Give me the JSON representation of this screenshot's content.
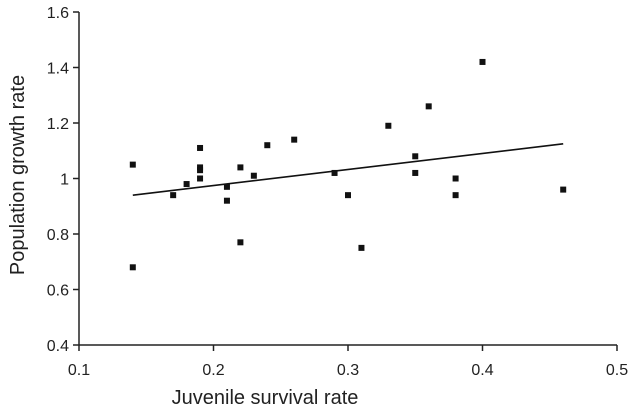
{
  "chart_data": {
    "type": "scatter",
    "title": "",
    "xlabel": "Juvenile survival rate",
    "ylabel": "Population growth rate",
    "xlim": [
      0.1,
      0.5
    ],
    "ylim": [
      0.4,
      1.6
    ],
    "x_ticks": [
      0.1,
      0.2,
      0.3,
      0.4,
      0.5
    ],
    "x_tick_labels": [
      "0.1",
      "0.2",
      "0.3",
      "0.4",
      "0.5"
    ],
    "y_ticks": [
      0.4,
      0.6,
      0.8,
      1.0,
      1.2,
      1.4,
      1.6
    ],
    "y_tick_labels": [
      "0.4",
      "0.6",
      "0.8",
      "1",
      "1.2",
      "1.4",
      "1.6"
    ],
    "grid": false,
    "legend": "none",
    "colors": {
      "marker": "#111111",
      "line": "#111111",
      "axis": "#222222"
    },
    "series": [
      {
        "points": [
          [
            0.14,
            1.05
          ],
          [
            0.14,
            0.68
          ],
          [
            0.17,
            0.94
          ],
          [
            0.18,
            0.98
          ],
          [
            0.19,
            1.11
          ],
          [
            0.19,
            1.04
          ],
          [
            0.19,
            1.03
          ],
          [
            0.19,
            1.0
          ],
          [
            0.21,
            0.97
          ],
          [
            0.21,
            0.92
          ],
          [
            0.22,
            1.04
          ],
          [
            0.22,
            0.77
          ],
          [
            0.23,
            1.01
          ],
          [
            0.24,
            1.12
          ],
          [
            0.26,
            1.14
          ],
          [
            0.29,
            1.02
          ],
          [
            0.3,
            0.94
          ],
          [
            0.31,
            0.75
          ],
          [
            0.33,
            1.19
          ],
          [
            0.35,
            1.08
          ],
          [
            0.35,
            1.02
          ],
          [
            0.36,
            1.26
          ],
          [
            0.38,
            1.0
          ],
          [
            0.38,
            0.94
          ],
          [
            0.4,
            1.42
          ],
          [
            0.46,
            0.96
          ]
        ]
      }
    ],
    "trend_line": {
      "x": [
        0.14,
        0.46
      ],
      "y": [
        0.94,
        1.125
      ]
    }
  }
}
